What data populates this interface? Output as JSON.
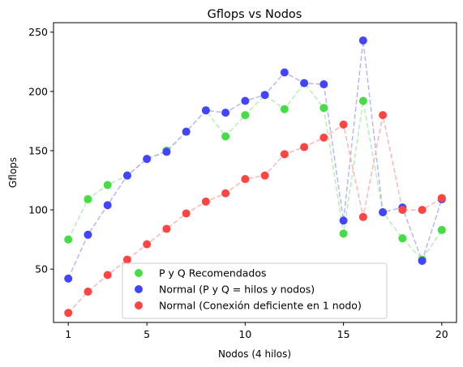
{
  "chart_data": {
    "type": "line",
    "title": "Gflops vs Nodos",
    "xlabel": "Nodos (4 hilos)",
    "ylabel": "Gflops",
    "xlim": [
      0.25,
      20.75
    ],
    "ylim": [
      5,
      258
    ],
    "xticks": [
      1,
      5,
      10,
      15,
      20
    ],
    "yticks": [
      50,
      100,
      150,
      200,
      250
    ],
    "grid": false,
    "legend_position": "lower-center",
    "series": [
      {
        "name": "P y Q Recomendados",
        "color": "#44dd44",
        "line_color": "#b6efb6",
        "x": [
          1,
          2,
          3,
          4,
          5,
          6,
          7,
          8,
          9,
          10,
          11,
          12,
          13,
          14,
          15,
          16,
          17,
          18,
          19,
          20
        ],
        "y": [
          75,
          109,
          121,
          129,
          143,
          150,
          166,
          184,
          162,
          180,
          197,
          185,
          207,
          186,
          80,
          192,
          98,
          76,
          58,
          83
        ]
      },
      {
        "name": "Normal (P y Q = hilos y nodos)",
        "color": "#4444ff",
        "line_color": "#b6b6ff",
        "x": [
          1,
          2,
          3,
          4,
          5,
          6,
          7,
          8,
          9,
          10,
          11,
          12,
          13,
          14,
          15,
          16,
          17,
          18,
          19,
          20
        ],
        "y": [
          42,
          79,
          104,
          129,
          143,
          149,
          166,
          184,
          182,
          192,
          197,
          216,
          207,
          206,
          91,
          243,
          98,
          102,
          57,
          109
        ]
      },
      {
        "name": "Normal (Conexión deficiente en 1 nodo)",
        "color": "#ff4444",
        "line_color": "#ffb6b6",
        "x": [
          1,
          2,
          3,
          4,
          5,
          6,
          7,
          8,
          9,
          10,
          11,
          12,
          13,
          14,
          15,
          16,
          17,
          18,
          19,
          20
        ],
        "y": [
          13,
          31,
          45,
          58,
          71,
          84,
          97,
          107,
          114,
          126,
          129,
          147,
          153,
          161,
          172,
          94,
          180,
          100,
          100,
          110
        ]
      }
    ]
  }
}
